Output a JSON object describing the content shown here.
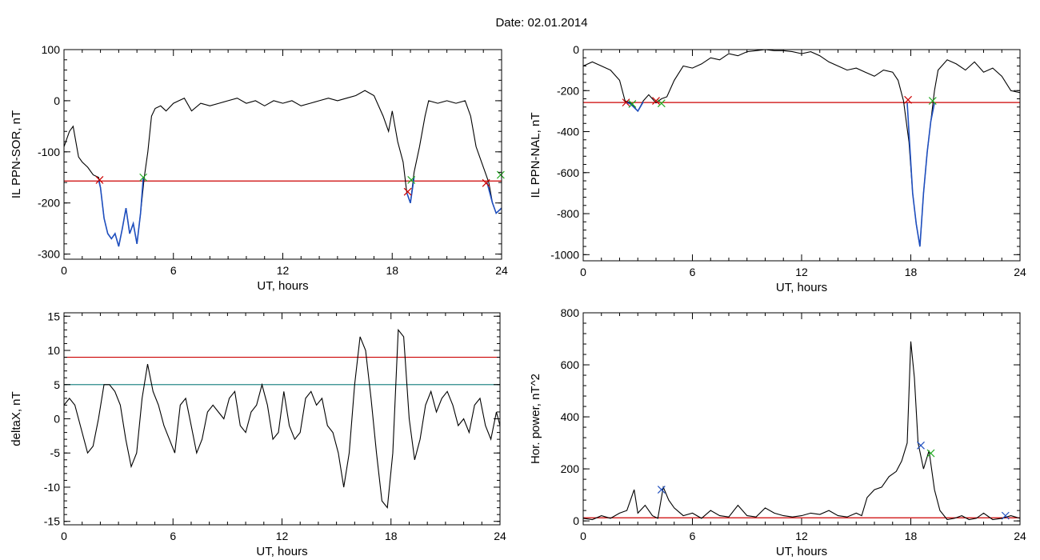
{
  "figure": {
    "title": "Date:  02.01.2014"
  },
  "chart_data": [
    {
      "type": "line",
      "id": "ppn_sor",
      "xlabel": "UT, hours",
      "ylabel": "IL PPN-SOR, nT",
      "xlim": [
        0,
        24
      ],
      "ylim": [
        -310,
        100
      ],
      "xticks": [
        0,
        6,
        12,
        18,
        24
      ],
      "yticks": [
        -300,
        -200,
        -100,
        0,
        100
      ],
      "grid": false,
      "series": [
        {
          "color": "#000000",
          "x": [
            0,
            0.3,
            0.5,
            0.8,
            1.0,
            1.3,
            1.6,
            1.9,
            2.0,
            2.2,
            2.4,
            2.6,
            2.8,
            3.0,
            3.2,
            3.4,
            3.6,
            3.8,
            4.0,
            4.2,
            4.4,
            4.6,
            4.8,
            5.0,
            5.3,
            5.6,
            6.0,
            6.3,
            6.6,
            7.0,
            7.5,
            8.0,
            8.5,
            9.0,
            9.5,
            10.0,
            10.5,
            11.0,
            11.5,
            12.0,
            12.5,
            13.0,
            13.5,
            14.0,
            14.5,
            15.0,
            15.5,
            16.0,
            16.5,
            17.0,
            17.5,
            17.8,
            18.0,
            18.3,
            18.6,
            18.8,
            19.0,
            19.2,
            19.5,
            19.8,
            20.0,
            20.5,
            21.0,
            21.5,
            22.0,
            22.3,
            22.6,
            22.9,
            23.1,
            23.3,
            23.5,
            23.7,
            24.0
          ],
          "y": [
            -90,
            -60,
            -50,
            -110,
            -120,
            -130,
            -145,
            -150,
            -170,
            -230,
            -260,
            -270,
            -260,
            -285,
            -250,
            -210,
            -260,
            -240,
            -280,
            -220,
            -150,
            -100,
            -30,
            -15,
            -10,
            -20,
            -5,
            0,
            5,
            -20,
            -5,
            -10,
            -5,
            0,
            5,
            -5,
            0,
            -10,
            0,
            -5,
            0,
            -10,
            -5,
            0,
            5,
            0,
            5,
            10,
            20,
            10,
            -30,
            -60,
            -20,
            -80,
            -120,
            -180,
            -200,
            -140,
            -90,
            -30,
            0,
            -5,
            0,
            -5,
            0,
            -30,
            -90,
            -120,
            -140,
            -160,
            -200,
            -220,
            -210
          ]
        },
        {
          "color": "#1f4fbf",
          "x": [
            1.9,
            2.0,
            2.2,
            2.4,
            2.6,
            2.8,
            3.0,
            3.2,
            3.4,
            3.6,
            3.8,
            4.0,
            4.2,
            4.35
          ],
          "y": [
            -155,
            -170,
            -230,
            -260,
            -270,
            -260,
            -285,
            -250,
            -210,
            -260,
            -240,
            -280,
            -220,
            -150
          ]
        },
        {
          "color": "#1f4fbf",
          "x": [
            18.8,
            19.0,
            19.2
          ],
          "y": [
            -180,
            -200,
            -150
          ]
        },
        {
          "color": "#1f4fbf",
          "x": [
            23.2,
            23.5,
            23.7,
            24.0
          ],
          "y": [
            -160,
            -200,
            -220,
            -210
          ]
        }
      ],
      "hlines": [
        {
          "y": -157,
          "color": "#cc0000"
        }
      ],
      "markers": [
        {
          "x": 1.95,
          "y": -155,
          "color": "#cc0000"
        },
        {
          "x": 4.35,
          "y": -150,
          "color": "#22aa22"
        },
        {
          "x": 18.85,
          "y": -178,
          "color": "#cc0000"
        },
        {
          "x": 19.05,
          "y": -155,
          "color": "#22aa22"
        },
        {
          "x": 23.15,
          "y": -161,
          "color": "#cc0000"
        },
        {
          "x": 23.95,
          "y": -145,
          "color": "#22aa22"
        }
      ]
    },
    {
      "type": "line",
      "id": "ppn_nal",
      "xlabel": "UT, hours",
      "ylabel": "IL PPN-NAL, nT",
      "xlim": [
        0,
        24
      ],
      "ylim": [
        -1030,
        0
      ],
      "xticks": [
        0,
        6,
        12,
        18,
        24
      ],
      "yticks": [
        -1000,
        -800,
        -600,
        -400,
        -200,
        0
      ],
      "grid": false,
      "series": [
        {
          "color": "#000000",
          "x": [
            0,
            0.5,
            1.0,
            1.5,
            2.0,
            2.3,
            2.6,
            3.0,
            3.3,
            3.6,
            4.0,
            4.3,
            4.6,
            5.0,
            5.5,
            6.0,
            6.5,
            7.0,
            7.5,
            8.0,
            8.5,
            9.0,
            9.5,
            10.0,
            10.5,
            11.0,
            11.5,
            12.0,
            12.5,
            13.0,
            13.5,
            14.0,
            14.5,
            15.0,
            15.5,
            16.0,
            16.5,
            17.0,
            17.3,
            17.6,
            17.9,
            18.1,
            18.3,
            18.5,
            18.7,
            18.9,
            19.1,
            19.3,
            19.5,
            20.0,
            20.5,
            21.0,
            21.5,
            22.0,
            22.5,
            23.0,
            23.5,
            24.0
          ],
          "y": [
            -80,
            -60,
            -80,
            -100,
            -150,
            -250,
            -260,
            -300,
            -250,
            -220,
            -260,
            -240,
            -230,
            -150,
            -80,
            -90,
            -70,
            -40,
            -50,
            -20,
            -30,
            -10,
            -5,
            0,
            -5,
            -5,
            -10,
            -20,
            -10,
            -30,
            -60,
            -80,
            -100,
            -90,
            -110,
            -130,
            -100,
            -110,
            -150,
            -250,
            -450,
            -700,
            -850,
            -960,
            -700,
            -500,
            -350,
            -200,
            -100,
            -50,
            -70,
            -100,
            -60,
            -110,
            -90,
            -130,
            -200,
            -210
          ]
        },
        {
          "color": "#1f4fbf",
          "x": [
            2.3,
            2.6,
            3.0,
            3.3
          ],
          "y": [
            -255,
            -265,
            -300,
            -255
          ]
        },
        {
          "color": "#1f4fbf",
          "x": [
            17.8,
            18.1,
            18.3,
            18.5,
            18.7,
            18.9,
            19.1,
            19.3
          ],
          "y": [
            -260,
            -700,
            -850,
            -960,
            -700,
            -500,
            -350,
            -260
          ]
        }
      ],
      "hlines": [
        {
          "y": -258,
          "color": "#cc0000"
        }
      ],
      "markers": [
        {
          "x": 2.35,
          "y": -258,
          "color": "#cc0000"
        },
        {
          "x": 2.7,
          "y": -265,
          "color": "#22aa22"
        },
        {
          "x": 4.0,
          "y": -250,
          "color": "#cc0000"
        },
        {
          "x": 4.3,
          "y": -262,
          "color": "#22aa22"
        },
        {
          "x": 17.85,
          "y": -245,
          "color": "#cc0000"
        },
        {
          "x": 19.2,
          "y": -250,
          "color": "#22aa22"
        }
      ]
    },
    {
      "type": "line",
      "id": "deltax",
      "xlabel": "UT, hours",
      "ylabel": "deltaX, nT",
      "xlim": [
        0,
        24
      ],
      "ylim": [
        -15.5,
        15.5
      ],
      "xticks": [
        0,
        6,
        12,
        18,
        24
      ],
      "yticks": [
        -15,
        -10,
        -5,
        0,
        5,
        10,
        15
      ],
      "grid": false,
      "series": [
        {
          "color": "#000000",
          "x": [
            0,
            0.3,
            0.6,
            1.0,
            1.3,
            1.6,
            1.9,
            2.2,
            2.5,
            2.8,
            3.1,
            3.4,
            3.7,
            4.0,
            4.3,
            4.6,
            4.9,
            5.2,
            5.5,
            5.8,
            6.1,
            6.4,
            6.7,
            7.0,
            7.3,
            7.6,
            7.9,
            8.2,
            8.5,
            8.8,
            9.1,
            9.4,
            9.7,
            10.0,
            10.3,
            10.6,
            10.9,
            11.2,
            11.5,
            11.8,
            12.1,
            12.4,
            12.7,
            13.0,
            13.3,
            13.6,
            13.9,
            14.2,
            14.5,
            14.8,
            15.1,
            15.4,
            15.7,
            16.0,
            16.3,
            16.6,
            16.9,
            17.2,
            17.5,
            17.8,
            18.1,
            18.4,
            18.7,
            19.0,
            19.3,
            19.6,
            19.9,
            20.2,
            20.5,
            20.8,
            21.1,
            21.4,
            21.7,
            22.0,
            22.3,
            22.6,
            22.9,
            23.2,
            23.5,
            23.8,
            24.0
          ],
          "y": [
            2,
            3,
            2,
            -2,
            -5,
            -4,
            0,
            5,
            5,
            4,
            2,
            -3,
            -7,
            -5,
            3,
            8,
            4,
            2,
            -1,
            -3,
            -5,
            2,
            3,
            -1,
            -5,
            -3,
            1,
            2,
            1,
            0,
            3,
            4,
            -1,
            -2,
            1,
            2,
            5,
            2,
            -3,
            -2,
            4,
            -1,
            -3,
            -2,
            3,
            4,
            2,
            3,
            -1,
            -2,
            -5,
            -10,
            -5,
            5,
            12,
            10,
            3,
            -5,
            -12,
            -13,
            -5,
            13,
            12,
            0,
            -6,
            -3,
            2,
            4,
            1,
            3,
            4,
            2,
            -1,
            0,
            -2,
            2,
            3,
            -1,
            -3,
            1,
            -1
          ]
        }
      ],
      "hlines": [
        {
          "y": 9,
          "color": "#cc0000"
        },
        {
          "y": 5,
          "color": "#2a8a8a"
        }
      ],
      "markers": []
    },
    {
      "type": "line",
      "id": "hor_power",
      "xlabel": "UT, hours",
      "ylabel": "Hor. power, nT^2",
      "xlim": [
        0,
        24
      ],
      "ylim": [
        -15,
        800
      ],
      "xticks": [
        0,
        6,
        12,
        18,
        24
      ],
      "yticks": [
        0,
        200,
        400,
        600,
        800
      ],
      "grid": false,
      "series": [
        {
          "color": "#000000",
          "x": [
            0,
            0.5,
            1.0,
            1.5,
            2.0,
            2.4,
            2.8,
            3.0,
            3.4,
            3.8,
            4.1,
            4.4,
            4.7,
            5.0,
            5.5,
            6.0,
            6.5,
            7.0,
            7.5,
            8.0,
            8.5,
            9.0,
            9.5,
            10.0,
            10.5,
            11.0,
            11.5,
            12.0,
            12.5,
            13.0,
            13.5,
            14.0,
            14.5,
            15.0,
            15.3,
            15.6,
            16.0,
            16.4,
            16.8,
            17.2,
            17.5,
            17.8,
            18.0,
            18.2,
            18.4,
            18.7,
            19.0,
            19.3,
            19.6,
            20.0,
            20.4,
            20.8,
            21.2,
            21.6,
            22.0,
            22.5,
            23.0,
            23.5,
            24.0
          ],
          "y": [
            10,
            5,
            20,
            10,
            30,
            40,
            120,
            30,
            60,
            20,
            10,
            130,
            80,
            50,
            20,
            30,
            10,
            40,
            20,
            15,
            60,
            20,
            15,
            50,
            30,
            20,
            15,
            20,
            30,
            25,
            40,
            20,
            15,
            30,
            20,
            90,
            120,
            130,
            170,
            190,
            230,
            300,
            690,
            550,
            300,
            200,
            270,
            120,
            40,
            5,
            10,
            20,
            5,
            10,
            30,
            5,
            10,
            20,
            10
          ]
        }
      ],
      "hlines": [
        {
          "y": 12,
          "color": "#cc0000"
        }
      ],
      "markers": [
        {
          "x": 4.3,
          "y": 120,
          "color": "#1f4fbf"
        },
        {
          "x": 18.55,
          "y": 290,
          "color": "#1f4fbf"
        },
        {
          "x": 19.1,
          "y": 260,
          "color": "#22aa22"
        },
        {
          "x": 23.2,
          "y": 20,
          "color": "#1f4fbf"
        }
      ]
    }
  ]
}
